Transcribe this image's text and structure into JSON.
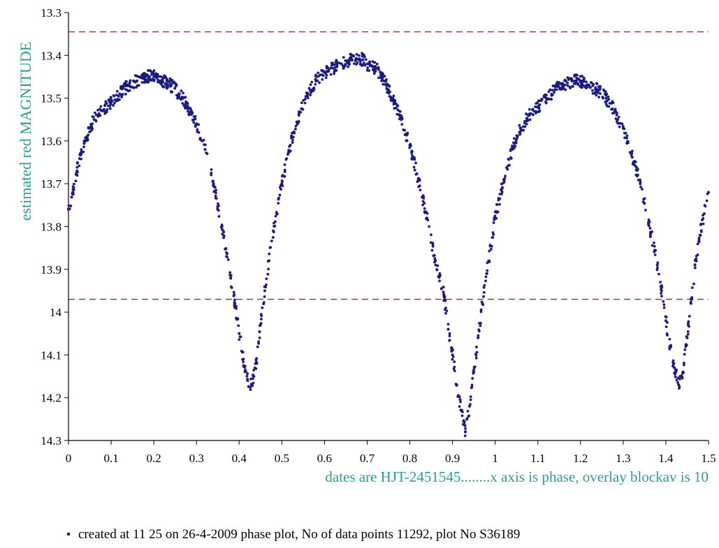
{
  "chart_data": {
    "type": "scatter",
    "title": "",
    "ylabel": "estimated red MAGNITUDE",
    "xlabel": "",
    "axis_note": "dates are HJT-2451545........x axis is phase, overlay blockav is 10",
    "footer": "created at 11 25 on 26-4-2009 phase plot, No of data points 11292,  plot No S36189",
    "xlim": [
      0,
      1.5
    ],
    "ylim": [
      13.3,
      14.3
    ],
    "y_inverted": true,
    "x_ticks": [
      "0",
      "0.1",
      "0.2",
      "0.3",
      "0.4",
      "0.5",
      "0.6",
      "0.7",
      "0.8",
      "0.9",
      "1",
      "1.1",
      "1.2",
      "1.3",
      "1.4",
      "1.5"
    ],
    "y_ticks": [
      "13.3",
      "13.4",
      "13.5",
      "13.6",
      "13.7",
      "13.8",
      "13.9",
      "14",
      "14.1",
      "14.2",
      "14.3"
    ],
    "reference_lines": [
      13.345,
      13.97
    ],
    "colors": {
      "points": "#1a1a80",
      "ref_line": "#9b2d2d",
      "label": "#2a9d8f"
    },
    "series": [
      {
        "x": [
          0.0,
          0.01,
          0.02,
          0.03,
          0.04,
          0.05,
          0.06,
          0.08,
          0.1,
          0.12,
          0.14,
          0.16,
          0.18,
          0.19,
          0.2,
          0.22,
          0.24,
          0.26,
          0.28,
          0.3,
          0.32,
          0.34,
          0.36,
          0.38,
          0.39,
          0.4,
          0.41,
          0.42,
          0.43,
          0.44,
          0.45,
          0.46,
          0.47,
          0.48,
          0.5,
          0.52,
          0.54,
          0.56,
          0.58,
          0.6,
          0.62,
          0.64,
          0.66,
          0.68,
          0.69,
          0.7,
          0.72,
          0.74,
          0.76,
          0.78,
          0.8,
          0.82,
          0.84,
          0.86,
          0.88,
          0.89,
          0.9,
          0.91,
          0.92,
          0.93,
          0.94,
          0.95,
          0.96,
          0.97,
          0.98,
          1.0,
          1.02,
          1.04,
          1.06,
          1.08,
          1.1,
          1.12,
          1.14,
          1.16,
          1.18,
          1.19,
          1.2,
          1.22,
          1.24,
          1.26,
          1.28,
          1.3,
          1.32,
          1.34,
          1.36,
          1.38,
          1.39,
          1.4,
          1.41,
          1.42,
          1.43,
          1.44,
          1.45,
          1.46,
          1.47,
          1.48,
          1.49,
          1.5
        ],
        "values": [
          13.76,
          13.72,
          13.67,
          13.63,
          13.6,
          13.57,
          13.55,
          13.53,
          13.51,
          13.49,
          13.47,
          13.46,
          13.45,
          13.45,
          13.45,
          13.46,
          13.47,
          13.49,
          13.52,
          13.56,
          13.62,
          13.7,
          13.8,
          13.92,
          13.98,
          14.05,
          14.11,
          14.16,
          14.17,
          14.12,
          14.03,
          13.95,
          13.88,
          13.81,
          13.7,
          13.61,
          13.54,
          13.49,
          13.46,
          13.44,
          13.43,
          13.42,
          13.41,
          13.41,
          13.41,
          13.42,
          13.43,
          13.46,
          13.5,
          13.55,
          13.61,
          13.69,
          13.78,
          13.88,
          13.96,
          14.04,
          14.1,
          14.17,
          14.23,
          14.28,
          14.22,
          14.14,
          14.06,
          13.98,
          13.91,
          13.78,
          13.69,
          13.62,
          13.57,
          13.54,
          13.52,
          13.5,
          13.48,
          13.47,
          13.46,
          13.46,
          13.46,
          13.47,
          13.48,
          13.5,
          13.53,
          13.57,
          13.63,
          13.7,
          13.79,
          13.89,
          13.95,
          14.02,
          14.08,
          14.13,
          14.17,
          14.14,
          14.06,
          13.97,
          13.88,
          13.82,
          13.77,
          13.72
        ]
      }
    ]
  }
}
